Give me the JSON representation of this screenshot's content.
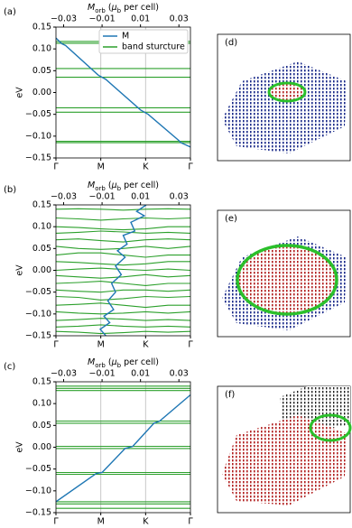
{
  "chart_data": [
    {
      "type": "line",
      "panel_label": "(a)",
      "y_label": "eV",
      "x2_label_parts": [
        "M",
        "orb",
        " (",
        "μ",
        "b",
        " per cell)"
      ],
      "categories": [
        "Γ",
        null,
        "M",
        null,
        "K",
        null,
        "Γ"
      ],
      "ylim": [
        -0.15,
        0.15
      ],
      "yticks": [
        {
          "value": -0.15,
          "label": "−0.15"
        },
        {
          "value": -0.1,
          "label": "−0.10"
        },
        {
          "value": -0.05,
          "label": "−0.05"
        },
        {
          "value": 0,
          "label": "0.00"
        },
        {
          "value": 0.05,
          "label": "0.05"
        },
        {
          "value": 0.1,
          "label": "0.10"
        },
        {
          "value": 0.15,
          "label": "0.15"
        }
      ],
      "x2lim": [
        -0.034,
        0.036
      ],
      "x2ticks": [
        {
          "value": -0.03,
          "label": "−0.03"
        },
        {
          "value": -0.01,
          "label": "−0.01"
        },
        {
          "value": 0.01,
          "label": "0.01"
        },
        {
          "value": 0.03,
          "label": "0.03"
        }
      ],
      "legend": "upper right",
      "series": [
        {
          "name": "M",
          "color": "#1f77b4",
          "axis": "x2",
          "x": [
            -0.034,
            -0.031,
            -0.029,
            -0.012,
            -0.008,
            0.01,
            0.014,
            0.03,
            0.031,
            0.036
          ],
          "values": [
            0.125,
            0.112,
            0.108,
            0.04,
            0.03,
            -0.04,
            -0.05,
            -0.11,
            -0.115,
            -0.125
          ]
        },
        {
          "name": "band sturcture",
          "color": "#2ca02c",
          "bands": [
            [
              0.117,
              0.117,
              0.117,
              0.117,
              0.117,
              0.117,
              0.117
            ],
            [
              0.113,
              0.113,
              0.113,
              0.113,
              0.113,
              0.113,
              0.113
            ],
            [
              0.055,
              0.055,
              0.055,
              0.055,
              0.055,
              0.055,
              0.055
            ],
            [
              0.035,
              0.035,
              0.035,
              0.035,
              0.035,
              0.035,
              0.035
            ],
            [
              -0.035,
              -0.035,
              -0.035,
              -0.035,
              -0.035,
              -0.035,
              -0.035
            ],
            [
              -0.045,
              -0.045,
              -0.045,
              -0.045,
              -0.045,
              -0.045,
              -0.045
            ],
            [
              -0.112,
              -0.112,
              -0.112,
              -0.112,
              -0.112,
              -0.112,
              -0.112
            ],
            [
              -0.115,
              -0.115,
              -0.115,
              -0.115,
              -0.115,
              -0.115,
              -0.115
            ]
          ]
        }
      ]
    },
    {
      "type": "line",
      "panel_label": "(b)",
      "y_label": "eV",
      "x2_label_parts": [
        "M",
        "orb",
        " (",
        "μ",
        "b",
        " per cell)"
      ],
      "categories": [
        "Γ",
        null,
        "M",
        null,
        "K",
        null,
        "Γ"
      ],
      "ylim": [
        -0.15,
        0.15
      ],
      "yticks": [
        {
          "value": -0.15,
          "label": "−0.15"
        },
        {
          "value": -0.1,
          "label": "−0.10"
        },
        {
          "value": -0.05,
          "label": "−0.05"
        },
        {
          "value": 0,
          "label": "0.00"
        },
        {
          "value": 0.05,
          "label": "0.05"
        },
        {
          "value": 0.1,
          "label": "0.10"
        },
        {
          "value": 0.15,
          "label": "0.15"
        }
      ],
      "x2lim": [
        -0.034,
        0.036
      ],
      "x2ticks": [
        {
          "value": -0.03,
          "label": "−0.03"
        },
        {
          "value": -0.01,
          "label": "−0.01"
        },
        {
          "value": 0.01,
          "label": "0.01"
        },
        {
          "value": 0.03,
          "label": "0.03"
        }
      ],
      "series": [
        {
          "color": "#1f77b4",
          "axis": "x2",
          "x": [
            0.013,
            0.008,
            0.012,
            0.005,
            0.007,
            0.001,
            0.003,
            -0.002,
            0.002,
            -0.003,
            0,
            -0.005,
            -0.003,
            -0.007,
            -0.004,
            -0.009,
            -0.006,
            -0.011,
            -0.008
          ],
          "values": [
            0.15,
            0.135,
            0.125,
            0.11,
            0.09,
            0.08,
            0.06,
            0.045,
            0.03,
            0.01,
            -0.01,
            -0.03,
            -0.05,
            -0.07,
            -0.09,
            -0.105,
            -0.12,
            -0.135,
            -0.15
          ]
        },
        {
          "color": "#2ca02c",
          "bands": [
            [
              0.14,
              0.141,
              0.14,
              0.138,
              0.14,
              0.141,
              0.14
            ],
            [
              0.12,
              0.118,
              0.115,
              0.118,
              0.12,
              0.118,
              0.12
            ],
            [
              0.1,
              0.098,
              0.095,
              0.093,
              0.095,
              0.1,
              0.1
            ],
            [
              0.085,
              0.087,
              0.09,
              0.088,
              0.085,
              0.087,
              0.085
            ],
            [
              0.07,
              0.072,
              0.068,
              0.065,
              0.07,
              0.072,
              0.07
            ],
            [
              0.055,
              0.05,
              0.048,
              0.05,
              0.055,
              0.05,
              0.055
            ],
            [
              0.035,
              0.04,
              0.04,
              0.035,
              0.03,
              0.035,
              0.035
            ],
            [
              0.02,
              0.018,
              0.015,
              0.012,
              0.015,
              0.02,
              0.02
            ],
            [
              0,
              0.003,
              0.005,
              0.002,
              0,
              0.003,
              0
            ],
            [
              -0.012,
              -0.015,
              -0.018,
              -0.015,
              -0.01,
              -0.015,
              -0.012
            ],
            [
              -0.03,
              -0.028,
              -0.025,
              -0.03,
              -0.035,
              -0.03,
              -0.03
            ],
            [
              -0.045,
              -0.048,
              -0.05,
              -0.045,
              -0.045,
              -0.048,
              -0.045
            ],
            [
              -0.06,
              -0.062,
              -0.068,
              -0.065,
              -0.06,
              -0.062,
              -0.06
            ],
            [
              -0.08,
              -0.078,
              -0.075,
              -0.08,
              -0.085,
              -0.08,
              -0.08
            ],
            [
              -0.095,
              -0.098,
              -0.1,
              -0.098,
              -0.095,
              -0.098,
              -0.095
            ],
            [
              -0.115,
              -0.113,
              -0.11,
              -0.112,
              -0.115,
              -0.113,
              -0.115
            ],
            [
              -0.13,
              -0.128,
              -0.125,
              -0.128,
              -0.13,
              -0.128,
              -0.13
            ],
            [
              -0.14,
              -0.142,
              -0.145,
              -0.143,
              -0.14,
              -0.142,
              -0.14
            ]
          ]
        }
      ]
    },
    {
      "type": "line",
      "panel_label": "(c)",
      "y_label": "eV",
      "x2_label_parts": [
        "M",
        "orb",
        " (",
        "μ",
        "b",
        " per cell)"
      ],
      "categories": [
        "Γ",
        null,
        "M",
        null,
        "K",
        null,
        "Γ"
      ],
      "ylim": [
        -0.15,
        0.15
      ],
      "yticks": [
        {
          "value": -0.15,
          "label": "−0.15"
        },
        {
          "value": -0.1,
          "label": "−0.10"
        },
        {
          "value": -0.05,
          "label": "−0.05"
        },
        {
          "value": 0,
          "label": "0.00"
        },
        {
          "value": 0.05,
          "label": "0.05"
        },
        {
          "value": 0.1,
          "label": "0.10"
        },
        {
          "value": 0.15,
          "label": "0.15"
        }
      ],
      "x2lim": [
        -0.034,
        0.036
      ],
      "x2ticks": [
        {
          "value": -0.03,
          "label": "−0.03"
        },
        {
          "value": -0.01,
          "label": "−0.01"
        },
        {
          "value": 0.01,
          "label": "0.01"
        },
        {
          "value": 0.03,
          "label": "0.03"
        }
      ],
      "series": [
        {
          "color": "#1f77b4",
          "axis": "x2",
          "x": [
            -0.034,
            -0.013,
            -0.01,
            0.002,
            0.006,
            0.017,
            0.02,
            0.036
          ],
          "values": [
            -0.125,
            -0.06,
            -0.058,
            -0.003,
            0.002,
            0.055,
            0.06,
            0.12
          ]
        },
        {
          "color": "#2ca02c",
          "bands": [
            [
              0.14,
              0.14,
              0.14,
              0.14,
              0.14,
              0.14,
              0.14
            ],
            [
              0.135,
              0.135,
              0.135,
              0.135,
              0.135,
              0.135,
              0.135
            ],
            [
              0.13,
              0.13,
              0.13,
              0.13,
              0.13,
              0.13,
              0.13
            ],
            [
              0.06,
              0.06,
              0.06,
              0.06,
              0.06,
              0.06,
              0.06
            ],
            [
              0.055,
              0.055,
              0.055,
              0.055,
              0.055,
              0.055,
              0.055
            ],
            [
              0.002,
              0.002,
              0.002,
              0.002,
              0.002,
              0.002,
              0.002
            ],
            [
              -0.003,
              -0.003,
              -0.003,
              -0.003,
              -0.003,
              -0.003,
              -0.003
            ],
            [
              -0.058,
              -0.058,
              -0.058,
              -0.058,
              -0.058,
              -0.058,
              -0.058
            ],
            [
              -0.062,
              -0.062,
              -0.062,
              -0.062,
              -0.062,
              -0.062,
              -0.062
            ],
            [
              -0.125,
              -0.125,
              -0.125,
              -0.125,
              -0.125,
              -0.125,
              -0.125
            ],
            [
              -0.13,
              -0.13,
              -0.13,
              -0.13,
              -0.13,
              -0.13,
              -0.13
            ],
            [
              -0.14,
              -0.14,
              -0.14,
              -0.14,
              -0.14,
              -0.14,
              -0.14
            ]
          ]
        }
      ]
    }
  ],
  "images": [
    {
      "label": "(d)"
    },
    {
      "label": "(e)"
    },
    {
      "label": "(f)"
    }
  ]
}
